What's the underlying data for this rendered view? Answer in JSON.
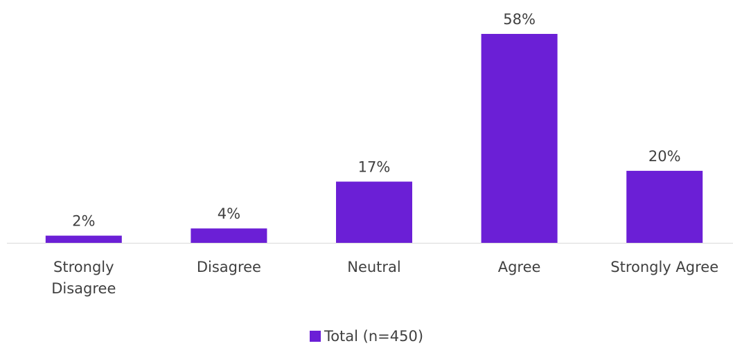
{
  "chart_data": {
    "type": "bar",
    "categories": [
      [
        "Strongly",
        "Disagree"
      ],
      [
        "Disagree"
      ],
      [
        "Neutral"
      ],
      [
        "Agree"
      ],
      [
        "Strongly Agree"
      ]
    ],
    "series": [
      {
        "name": "Total (n=450)",
        "values": [
          2,
          4,
          17,
          58,
          20
        ],
        "data_labels": [
          "2%",
          "4%",
          "17%",
          "58%",
          "20%"
        ],
        "color": "#6b1fd6"
      }
    ],
    "ylim": [
      0,
      58
    ],
    "grid": false,
    "legend_position": "bottom",
    "axis_color": "#d9d9d9",
    "text_color": "#404040"
  }
}
